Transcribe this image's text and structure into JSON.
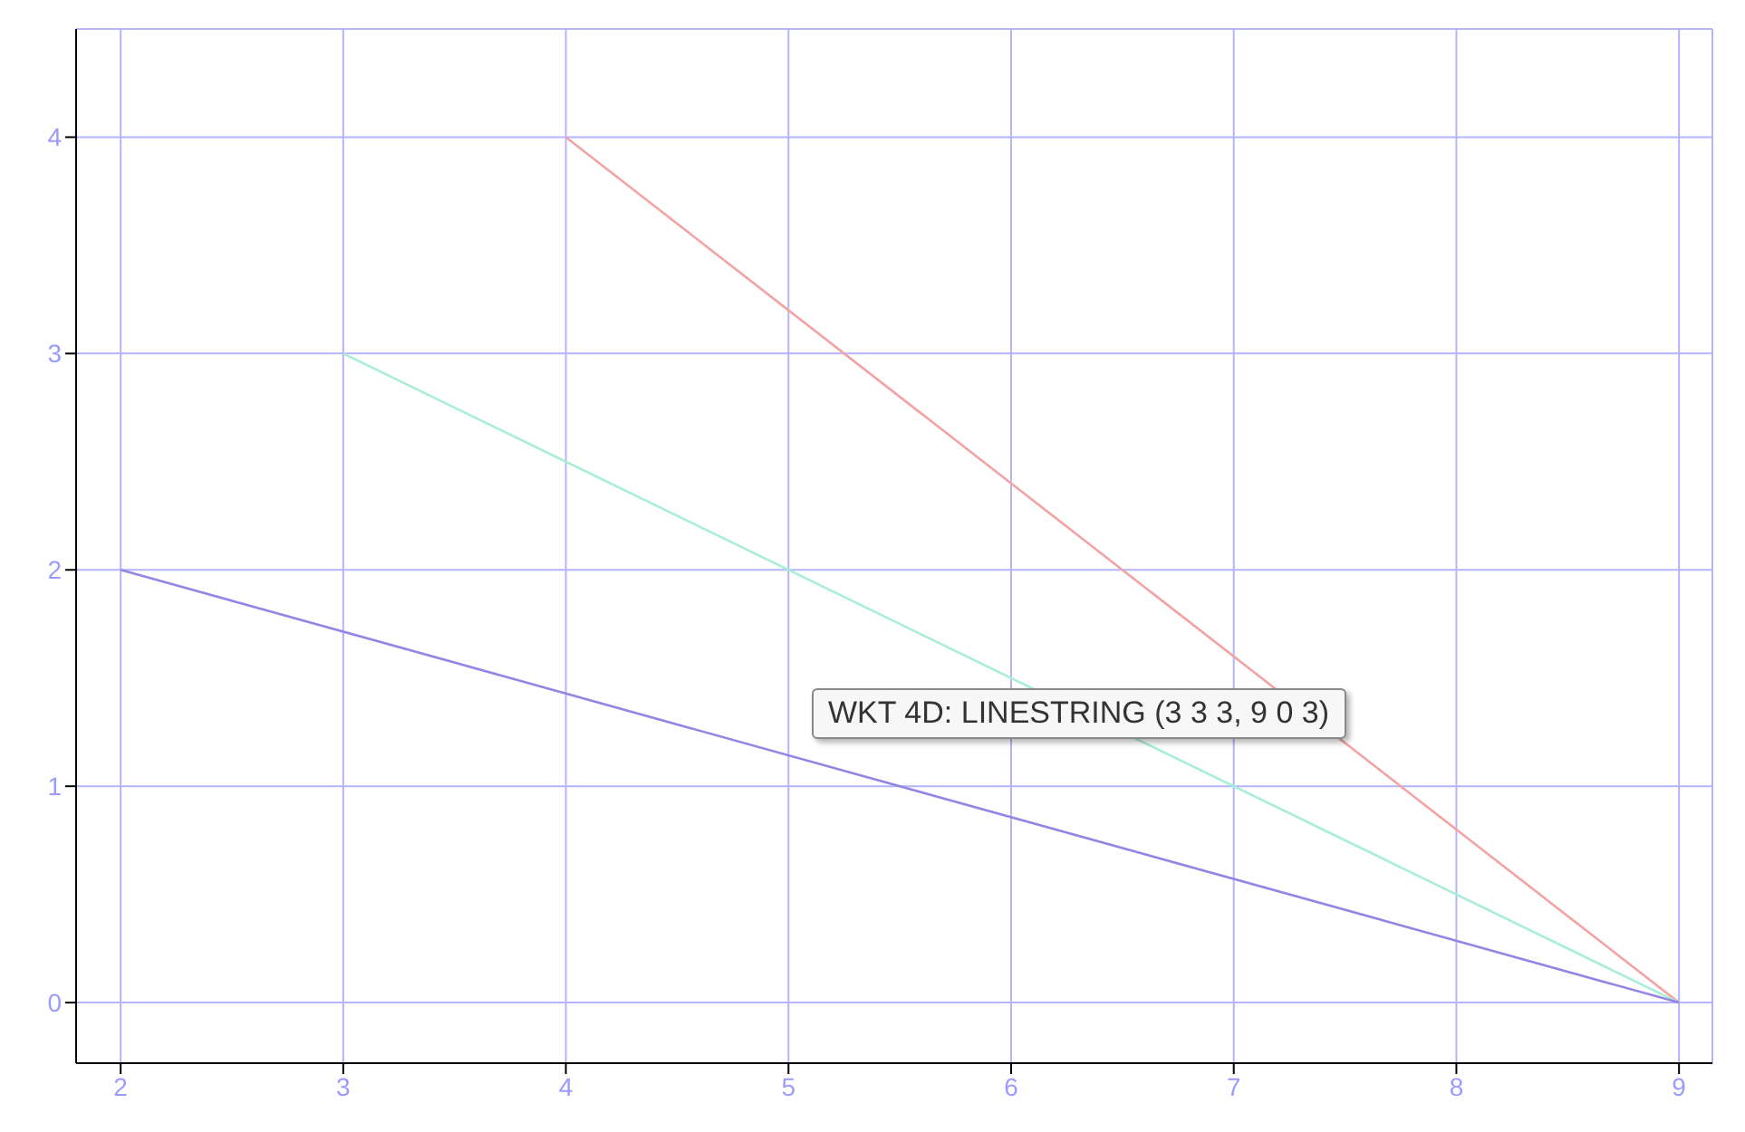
{
  "chart_data": {
    "type": "line",
    "xlim": [
      1.8,
      9.15
    ],
    "ylim": [
      -0.28,
      4.5
    ],
    "xticks": [
      2,
      3,
      4,
      5,
      6,
      7,
      8,
      9
    ],
    "yticks": [
      0,
      1,
      2,
      3,
      4
    ],
    "grid": true,
    "marker": "none",
    "line_style": "solid",
    "series": [
      {
        "color": "#f4a3a3",
        "x": [
          4,
          9
        ],
        "values": [
          4,
          0
        ]
      },
      {
        "color": "#a6eed6",
        "x": [
          3,
          9
        ],
        "values": [
          3,
          0
        ]
      },
      {
        "color": "#9484e4",
        "x": [
          2,
          9
        ],
        "values": [
          2,
          0
        ]
      }
    ],
    "annotations": [
      "WKT 4D: LINESTRING (3 3 3, 9 0 3)"
    ]
  }
}
